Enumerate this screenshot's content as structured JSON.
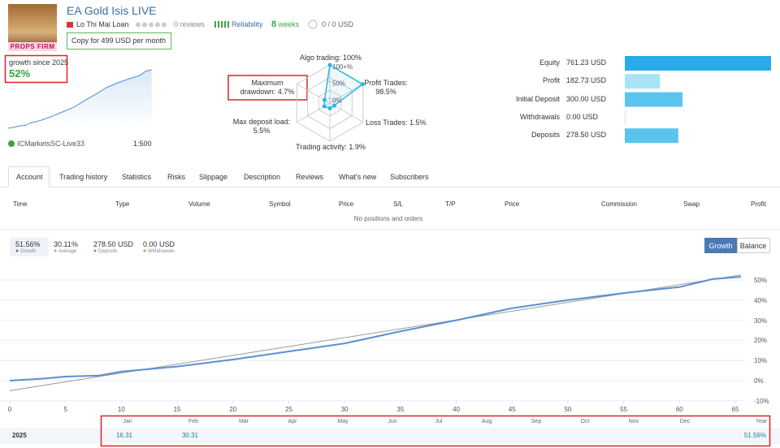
{
  "header": {
    "avatar_text": "PROPS FIRM",
    "title": "EA Gold Isis LIVE",
    "author": "Lo Thi Mai Loan",
    "reviews": "0 reviews",
    "reliability": "Reliability",
    "weeks": "8 weeks",
    "subscribers": "0 / 0 USD",
    "copy_button": "Copy for 499 USD per month"
  },
  "summary": {
    "label": "growth since 2025",
    "value": "52%",
    "broker": "ICMarketsSC-Live33",
    "leverage": "1:500"
  },
  "radar": {
    "labels": [
      "Algo trading: 100%",
      "Profit Trades: 98.5%",
      "Loss Trades: 1.5%",
      "Trading activity: 1.9%",
      "Max deposit load: 5.5%",
      "Maximum drawdown: 4.7%"
    ],
    "values": [
      100,
      98.5,
      1.5,
      1.9,
      5.5,
      4.7
    ],
    "rings": [
      {
        "value": 100,
        "label": "100+%"
      },
      {
        "value": 50,
        "label": "50%"
      },
      {
        "value": 0,
        "label": "0%"
      }
    ],
    "color": "#29b6e6"
  },
  "balance": {
    "labels": [
      "Equity",
      "Profit",
      "Initial Deposit",
      "Withdrawals",
      "Deposits"
    ],
    "value_labels": [
      "761.23 USD",
      "182.73 USD",
      "300.00 USD",
      "0.00 USD",
      "278.50 USD"
    ],
    "values": [
      761.23,
      182.73,
      300,
      0,
      278.5
    ],
    "colors": [
      "#29aaea",
      "#a8e2f7",
      "#5cc3ee",
      "#5cc3ee",
      "#5cc3ee"
    ]
  },
  "tabs": [
    "Account",
    "Trading history",
    "Statistics",
    "Risks",
    "Slippage",
    "Description",
    "Reviews",
    "What's new",
    "Subscribers"
  ],
  "positions": {
    "columns": [
      "Time",
      "Type",
      "Volume",
      "Symbol",
      "Price",
      "S/L",
      "T/P",
      "Price",
      "Commission",
      "Swap",
      "Profit"
    ],
    "empty": "No positions and orders"
  },
  "legend": [
    {
      "value": "51.56%",
      "label": "Growth",
      "color": "#4a7ab5"
    },
    {
      "value": "30.11%",
      "label": "Average",
      "color": "#aaaaaa"
    },
    {
      "value": "278.50 USD",
      "label": "Deposits",
      "color": "#5aaa5a"
    },
    {
      "value": "0.00 USD",
      "label": "Withdrawals",
      "color": "#e0902a"
    }
  ],
  "buttons": [
    "Growth",
    "Balance"
  ],
  "chart_data": {
    "type": "line",
    "series": [
      {
        "name": "Growth",
        "color": "#5a8fd0",
        "x": [
          0,
          3,
          5,
          8,
          10,
          15,
          20,
          25,
          30,
          35,
          40,
          45,
          50,
          55,
          60,
          63,
          65.5
        ],
        "values": [
          0,
          1,
          2,
          2.5,
          4.5,
          7,
          10.5,
          14.5,
          18.5,
          24.5,
          30,
          36,
          40,
          43.5,
          46.5,
          50.5,
          51.56
        ]
      },
      {
        "name": "Average",
        "color": "#999999",
        "x": [
          0,
          65.5
        ],
        "values": [
          -5,
          52.5
        ]
      }
    ],
    "xlim": [
      0,
      66
    ],
    "ylim": [
      -10,
      55
    ],
    "xticks": [
      0,
      5,
      10,
      15,
      20,
      25,
      30,
      35,
      40,
      45,
      50,
      55,
      60,
      65
    ],
    "yticks": [
      {
        "value": -10,
        "label": "-10%"
      },
      {
        "value": 0,
        "label": "0%"
      },
      {
        "value": 10,
        "label": "10%"
      },
      {
        "value": 20,
        "label": "20%"
      },
      {
        "value": 30,
        "label": "30%"
      },
      {
        "value": 40,
        "label": "40%"
      },
      {
        "value": 50,
        "label": "50%"
      }
    ],
    "grid": true
  },
  "returns": {
    "year": "2025",
    "months": [
      "Jan",
      "Feb",
      "Mar",
      "Apr",
      "May",
      "Jun",
      "Jul",
      "Aug",
      "Sep",
      "Oct",
      "Nov",
      "Dec"
    ],
    "total_label": "Year",
    "values": [
      "16.31",
      "30.31",
      null,
      null,
      null,
      null,
      null,
      null,
      null,
      null,
      null,
      null
    ],
    "total": "51.56%"
  }
}
